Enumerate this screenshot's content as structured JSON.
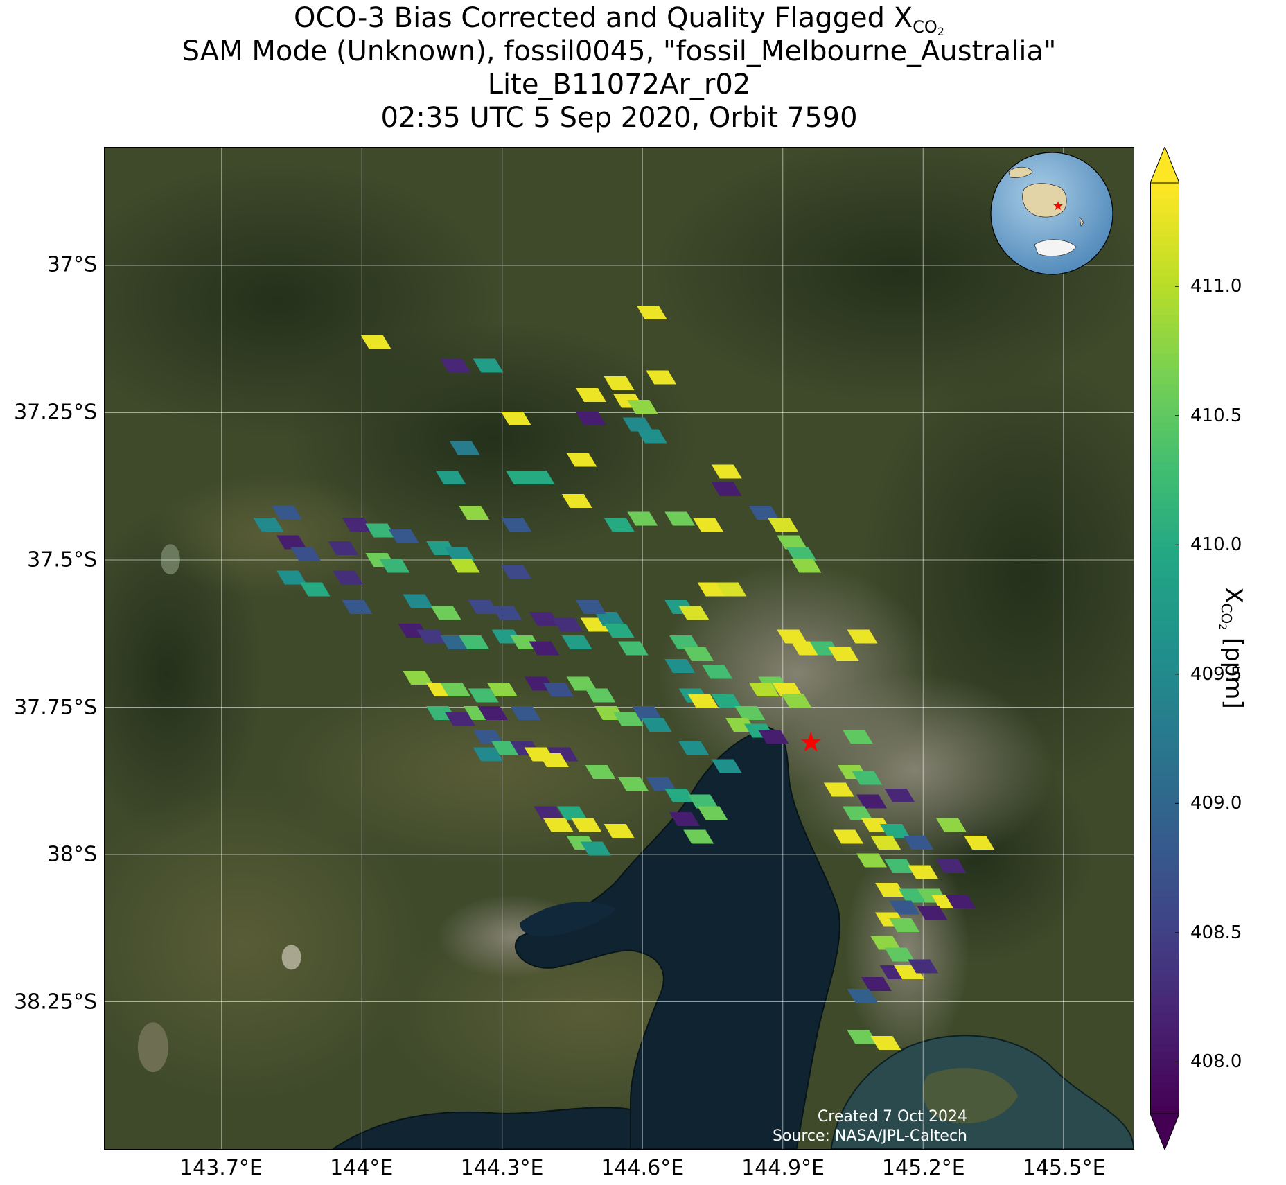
{
  "title": {
    "line1_prefix": "OCO-3 Bias Corrected and Quality Flagged X",
    "line1_sub": "CO",
    "line1_sub2": "2",
    "line2": "SAM Mode (Unknown), fossil0045, \"fossil_Melbourne_Australia\"",
    "line3": "Lite_B11072Ar_r02",
    "line4": "02:35 UTC 5 Sep 2020, Orbit 7590"
  },
  "axes": {
    "lat_ticks": [
      "37°S",
      "37.25°S",
      "37.5°S",
      "37.75°S",
      "38°S",
      "38.25°S"
    ],
    "lon_ticks": [
      "143.7°E",
      "144°E",
      "144.3°E",
      "144.6°E",
      "144.9°E",
      "145.2°E",
      "145.5°E"
    ],
    "lat_values": [
      -37.0,
      -37.25,
      -37.5,
      -37.75,
      -38.0,
      -38.25
    ],
    "lon_values": [
      143.7,
      144.0,
      144.3,
      144.6,
      144.9,
      145.2,
      145.5
    ],
    "lon_range": [
      143.45,
      145.65
    ],
    "lat_range": [
      -36.8,
      -38.5
    ],
    "grid": true
  },
  "colorbar": {
    "label_prefix": "X",
    "label_sub": "CO",
    "label_sub2": "2",
    "label_suffix": " [ppm]",
    "ticks": [
      "408.0",
      "408.5",
      "409.0",
      "409.5",
      "410.0",
      "410.5",
      "411.0"
    ],
    "tick_values": [
      408.0,
      408.5,
      409.0,
      409.5,
      410.0,
      410.5,
      411.0
    ],
    "range": [
      407.8,
      411.4
    ],
    "colormap": "viridis",
    "extend": "both"
  },
  "target": {
    "name": "Melbourne",
    "lon": 144.96,
    "lat": -37.81,
    "marker": "red-star",
    "color": "#ff0000"
  },
  "inset": {
    "type": "globe",
    "marker": "red-star"
  },
  "credits": {
    "created": "Created 7 Oct 2024",
    "source": "Source: NASA/JPL-Caltech"
  },
  "chart_data": {
    "type": "scatter",
    "x_name": "longitude",
    "y_name": "latitude",
    "c_name": "XCO2",
    "points": [
      {
        "x": 144.03,
        "y": -37.13,
        "c": 411.3
      },
      {
        "x": 144.2,
        "y": -37.17,
        "c": 408.2
      },
      {
        "x": 144.27,
        "y": -37.17,
        "c": 409.8
      },
      {
        "x": 144.62,
        "y": -37.08,
        "c": 411.3
      },
      {
        "x": 144.64,
        "y": -37.19,
        "c": 411.3
      },
      {
        "x": 144.49,
        "y": -37.22,
        "c": 411.3
      },
      {
        "x": 144.55,
        "y": -37.2,
        "c": 411.3
      },
      {
        "x": 144.57,
        "y": -37.23,
        "c": 411.3
      },
      {
        "x": 144.6,
        "y": -37.24,
        "c": 410.8
      },
      {
        "x": 144.49,
        "y": -37.26,
        "c": 408.1
      },
      {
        "x": 144.59,
        "y": -37.27,
        "c": 409.5
      },
      {
        "x": 144.62,
        "y": -37.29,
        "c": 409.6
      },
      {
        "x": 144.33,
        "y": -37.26,
        "c": 411.3
      },
      {
        "x": 144.22,
        "y": -37.31,
        "c": 409.3
      },
      {
        "x": 144.47,
        "y": -37.33,
        "c": 411.3
      },
      {
        "x": 144.19,
        "y": -37.36,
        "c": 409.8
      },
      {
        "x": 144.34,
        "y": -37.36,
        "c": 410.0
      },
      {
        "x": 144.38,
        "y": -37.36,
        "c": 410.0
      },
      {
        "x": 144.46,
        "y": -37.4,
        "c": 411.3
      },
      {
        "x": 144.24,
        "y": -37.42,
        "c": 410.8
      },
      {
        "x": 143.84,
        "y": -37.42,
        "c": 408.8
      },
      {
        "x": 143.8,
        "y": -37.44,
        "c": 409.5
      },
      {
        "x": 143.99,
        "y": -37.44,
        "c": 408.2
      },
      {
        "x": 144.04,
        "y": -37.45,
        "c": 410.2
      },
      {
        "x": 144.09,
        "y": -37.46,
        "c": 408.8
      },
      {
        "x": 144.33,
        "y": -37.44,
        "c": 408.8
      },
      {
        "x": 144.55,
        "y": -37.44,
        "c": 410.0
      },
      {
        "x": 144.6,
        "y": -37.43,
        "c": 410.6
      },
      {
        "x": 144.68,
        "y": -37.43,
        "c": 410.6
      },
      {
        "x": 144.74,
        "y": -37.44,
        "c": 411.3
      },
      {
        "x": 144.78,
        "y": -37.35,
        "c": 411.3
      },
      {
        "x": 144.78,
        "y": -37.38,
        "c": 408.1
      },
      {
        "x": 144.86,
        "y": -37.42,
        "c": 408.8
      },
      {
        "x": 144.9,
        "y": -37.44,
        "c": 411.2
      },
      {
        "x": 144.92,
        "y": -37.47,
        "c": 410.7
      },
      {
        "x": 144.94,
        "y": -37.49,
        "c": 410.3
      },
      {
        "x": 144.95,
        "y": -37.51,
        "c": 410.8
      },
      {
        "x": 143.85,
        "y": -37.47,
        "c": 408.1
      },
      {
        "x": 143.88,
        "y": -37.49,
        "c": 408.7
      },
      {
        "x": 143.96,
        "y": -37.48,
        "c": 408.3
      },
      {
        "x": 144.04,
        "y": -37.5,
        "c": 410.6
      },
      {
        "x": 144.07,
        "y": -37.51,
        "c": 410.2
      },
      {
        "x": 144.17,
        "y": -37.48,
        "c": 409.8
      },
      {
        "x": 144.21,
        "y": -37.49,
        "c": 409.6
      },
      {
        "x": 144.22,
        "y": -37.51,
        "c": 411.0
      },
      {
        "x": 144.33,
        "y": -37.52,
        "c": 408.6
      },
      {
        "x": 143.85,
        "y": -37.53,
        "c": 409.6
      },
      {
        "x": 143.9,
        "y": -37.55,
        "c": 410.0
      },
      {
        "x": 143.97,
        "y": -37.53,
        "c": 408.3
      },
      {
        "x": 143.99,
        "y": -37.58,
        "c": 408.8
      },
      {
        "x": 144.12,
        "y": -37.57,
        "c": 409.5
      },
      {
        "x": 144.18,
        "y": -37.59,
        "c": 410.6
      },
      {
        "x": 144.26,
        "y": -37.58,
        "c": 408.6
      },
      {
        "x": 144.31,
        "y": -37.59,
        "c": 408.6
      },
      {
        "x": 144.39,
        "y": -37.6,
        "c": 408.2
      },
      {
        "x": 144.44,
        "y": -37.61,
        "c": 408.3
      },
      {
        "x": 144.5,
        "y": -37.61,
        "c": 411.3
      },
      {
        "x": 144.53,
        "y": -37.6,
        "c": 409.5
      },
      {
        "x": 144.49,
        "y": -37.58,
        "c": 408.8
      },
      {
        "x": 144.55,
        "y": -37.62,
        "c": 410.0
      },
      {
        "x": 144.58,
        "y": -37.65,
        "c": 410.3
      },
      {
        "x": 144.46,
        "y": -37.64,
        "c": 409.8
      },
      {
        "x": 144.11,
        "y": -37.62,
        "c": 408.1
      },
      {
        "x": 144.15,
        "y": -37.63,
        "c": 408.4
      },
      {
        "x": 144.2,
        "y": -37.64,
        "c": 409.0
      },
      {
        "x": 144.24,
        "y": -37.64,
        "c": 410.3
      },
      {
        "x": 144.31,
        "y": -37.63,
        "c": 409.8
      },
      {
        "x": 144.35,
        "y": -37.64,
        "c": 410.6
      },
      {
        "x": 144.39,
        "y": -37.65,
        "c": 408.1
      },
      {
        "x": 144.68,
        "y": -37.58,
        "c": 409.8
      },
      {
        "x": 144.71,
        "y": -37.59,
        "c": 411.2
      },
      {
        "x": 144.75,
        "y": -37.55,
        "c": 411.3
      },
      {
        "x": 144.79,
        "y": -37.55,
        "c": 411.2
      },
      {
        "x": 144.69,
        "y": -37.64,
        "c": 410.3
      },
      {
        "x": 144.72,
        "y": -37.66,
        "c": 410.5
      },
      {
        "x": 144.76,
        "y": -37.69,
        "c": 410.3
      },
      {
        "x": 144.68,
        "y": -37.68,
        "c": 409.6
      },
      {
        "x": 144.71,
        "y": -37.73,
        "c": 409.8
      },
      {
        "x": 144.78,
        "y": -37.74,
        "c": 410.0
      },
      {
        "x": 144.73,
        "y": -37.74,
        "c": 411.3
      },
      {
        "x": 144.92,
        "y": -37.63,
        "c": 411.3
      },
      {
        "x": 144.95,
        "y": -37.65,
        "c": 411.3
      },
      {
        "x": 144.99,
        "y": -37.65,
        "c": 410.3
      },
      {
        "x": 145.03,
        "y": -37.66,
        "c": 411.3
      },
      {
        "x": 145.07,
        "y": -37.63,
        "c": 411.3
      },
      {
        "x": 144.88,
        "y": -37.71,
        "c": 410.6
      },
      {
        "x": 144.91,
        "y": -37.72,
        "c": 411.3
      },
      {
        "x": 144.93,
        "y": -37.74,
        "c": 410.8
      },
      {
        "x": 144.86,
        "y": -37.72,
        "c": 411.0
      },
      {
        "x": 144.83,
        "y": -37.76,
        "c": 410.5
      },
      {
        "x": 144.81,
        "y": -37.78,
        "c": 410.8
      },
      {
        "x": 144.85,
        "y": -37.79,
        "c": 410.0
      },
      {
        "x": 144.88,
        "y": -37.8,
        "c": 408.1
      },
      {
        "x": 144.12,
        "y": -37.7,
        "c": 410.8
      },
      {
        "x": 144.17,
        "y": -37.72,
        "c": 411.3
      },
      {
        "x": 144.2,
        "y": -37.72,
        "c": 410.6
      },
      {
        "x": 144.26,
        "y": -37.73,
        "c": 410.3
      },
      {
        "x": 144.3,
        "y": -37.72,
        "c": 410.8
      },
      {
        "x": 144.38,
        "y": -37.71,
        "c": 408.1
      },
      {
        "x": 144.42,
        "y": -37.72,
        "c": 408.7
      },
      {
        "x": 144.47,
        "y": -37.71,
        "c": 410.6
      },
      {
        "x": 144.51,
        "y": -37.73,
        "c": 410.5
      },
      {
        "x": 144.53,
        "y": -37.76,
        "c": 410.8
      },
      {
        "x": 144.57,
        "y": -37.77,
        "c": 410.5
      },
      {
        "x": 144.61,
        "y": -37.76,
        "c": 408.8
      },
      {
        "x": 144.63,
        "y": -37.78,
        "c": 409.6
      },
      {
        "x": 144.17,
        "y": -37.76,
        "c": 410.2
      },
      {
        "x": 144.21,
        "y": -37.77,
        "c": 408.2
      },
      {
        "x": 144.25,
        "y": -37.76,
        "c": 410.6
      },
      {
        "x": 144.28,
        "y": -37.76,
        "c": 408.1
      },
      {
        "x": 144.35,
        "y": -37.76,
        "c": 408.8
      },
      {
        "x": 144.27,
        "y": -37.8,
        "c": 408.8
      },
      {
        "x": 144.27,
        "y": -37.83,
        "c": 409.5
      },
      {
        "x": 144.31,
        "y": -37.82,
        "c": 410.3
      },
      {
        "x": 144.35,
        "y": -37.82,
        "c": 408.3
      },
      {
        "x": 144.38,
        "y": -37.83,
        "c": 411.3
      },
      {
        "x": 144.43,
        "y": -37.83,
        "c": 408.2
      },
      {
        "x": 144.41,
        "y": -37.84,
        "c": 411.3
      },
      {
        "x": 144.71,
        "y": -37.82,
        "c": 409.6
      },
      {
        "x": 144.78,
        "y": -37.85,
        "c": 409.6
      },
      {
        "x": 144.51,
        "y": -37.86,
        "c": 410.6
      },
      {
        "x": 144.58,
        "y": -37.88,
        "c": 410.6
      },
      {
        "x": 144.64,
        "y": -37.88,
        "c": 408.8
      },
      {
        "x": 144.68,
        "y": -37.9,
        "c": 410.0
      },
      {
        "x": 144.73,
        "y": -37.91,
        "c": 410.3
      },
      {
        "x": 144.69,
        "y": -37.94,
        "c": 408.1
      },
      {
        "x": 144.75,
        "y": -37.93,
        "c": 410.6
      },
      {
        "x": 144.4,
        "y": -37.93,
        "c": 408.2
      },
      {
        "x": 144.45,
        "y": -37.93,
        "c": 410.0
      },
      {
        "x": 144.42,
        "y": -37.95,
        "c": 411.3
      },
      {
        "x": 144.48,
        "y": -37.95,
        "c": 411.3
      },
      {
        "x": 144.55,
        "y": -37.96,
        "c": 411.3
      },
      {
        "x": 144.47,
        "y": -37.98,
        "c": 410.6
      },
      {
        "x": 144.5,
        "y": -37.99,
        "c": 409.8
      },
      {
        "x": 144.72,
        "y": -37.97,
        "c": 410.6
      },
      {
        "x": 145.06,
        "y": -37.8,
        "c": 410.5
      },
      {
        "x": 145.05,
        "y": -37.86,
        "c": 410.8
      },
      {
        "x": 145.08,
        "y": -37.87,
        "c": 410.3
      },
      {
        "x": 145.02,
        "y": -37.89,
        "c": 411.3
      },
      {
        "x": 145.09,
        "y": -37.91,
        "c": 408.1
      },
      {
        "x": 145.15,
        "y": -37.9,
        "c": 408.2
      },
      {
        "x": 145.06,
        "y": -37.93,
        "c": 410.5
      },
      {
        "x": 145.1,
        "y": -37.95,
        "c": 411.3
      },
      {
        "x": 145.14,
        "y": -37.96,
        "c": 410.0
      },
      {
        "x": 145.04,
        "y": -37.97,
        "c": 411.3
      },
      {
        "x": 145.12,
        "y": -37.98,
        "c": 411.2
      },
      {
        "x": 145.19,
        "y": -37.98,
        "c": 408.8
      },
      {
        "x": 145.09,
        "y": -38.01,
        "c": 410.8
      },
      {
        "x": 145.15,
        "y": -38.02,
        "c": 410.3
      },
      {
        "x": 145.2,
        "y": -38.03,
        "c": 411.3
      },
      {
        "x": 145.26,
        "y": -38.02,
        "c": 408.2
      },
      {
        "x": 145.32,
        "y": -37.98,
        "c": 411.3
      },
      {
        "x": 145.26,
        "y": -37.95,
        "c": 410.8
      },
      {
        "x": 145.13,
        "y": -38.06,
        "c": 411.3
      },
      {
        "x": 145.18,
        "y": -38.07,
        "c": 410.3
      },
      {
        "x": 145.22,
        "y": -38.07,
        "c": 410.6
      },
      {
        "x": 145.25,
        "y": -38.08,
        "c": 411.3
      },
      {
        "x": 145.28,
        "y": -38.08,
        "c": 408.1
      },
      {
        "x": 145.16,
        "y": -38.09,
        "c": 408.8
      },
      {
        "x": 145.22,
        "y": -38.1,
        "c": 408.1
      },
      {
        "x": 145.13,
        "y": -38.11,
        "c": 411.3
      },
      {
        "x": 145.16,
        "y": -38.12,
        "c": 410.6
      },
      {
        "x": 145.12,
        "y": -38.15,
        "c": 410.8
      },
      {
        "x": 145.15,
        "y": -38.17,
        "c": 410.5
      },
      {
        "x": 145.14,
        "y": -38.2,
        "c": 408.2
      },
      {
        "x": 145.17,
        "y": -38.2,
        "c": 411.3
      },
      {
        "x": 145.2,
        "y": -38.19,
        "c": 408.3
      },
      {
        "x": 145.1,
        "y": -38.22,
        "c": 408.1
      },
      {
        "x": 145.07,
        "y": -38.24,
        "c": 408.9
      },
      {
        "x": 145.07,
        "y": -38.31,
        "c": 410.6
      },
      {
        "x": 145.12,
        "y": -38.32,
        "c": 411.3
      }
    ]
  }
}
